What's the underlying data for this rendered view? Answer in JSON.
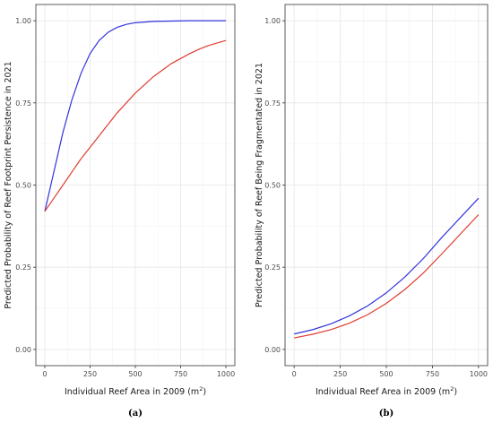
{
  "chart_data": [
    {
      "type": "line",
      "panel_label": "(a)",
      "xlabel": "Individual Reef Area in 2009 (m",
      "xlabel_sup": "2",
      "xlabel_end": ")",
      "ylabel": "Predicted Probability of Reef Footprint Persistence in 2021",
      "xlim": [
        0,
        1000
      ],
      "ylim": [
        0,
        1
      ],
      "xticks": [
        0,
        250,
        500,
        750,
        1000
      ],
      "yticks": [
        0.0,
        0.25,
        0.5,
        0.75,
        1.0
      ],
      "xtick_labels": [
        "0",
        "250",
        "500",
        "750",
        "1000"
      ],
      "ytick_labels": [
        "0.00",
        "0.25",
        "0.50",
        "0.75",
        "1.00"
      ],
      "grid": true,
      "series": [
        {
          "color": "#3333dd",
          "x": [
            0,
            50,
            100,
            150,
            200,
            250,
            300,
            350,
            400,
            450,
            500,
            600,
            700,
            800,
            900,
            1000
          ],
          "y": [
            0.42,
            0.54,
            0.66,
            0.76,
            0.84,
            0.9,
            0.94,
            0.965,
            0.98,
            0.989,
            0.994,
            0.998,
            0.999,
            1.0,
            1.0,
            1.0
          ]
        },
        {
          "color": "#e03c31",
          "x": [
            0,
            50,
            100,
            150,
            200,
            250,
            300,
            350,
            400,
            450,
            500,
            550,
            600,
            650,
            700,
            750,
            800,
            850,
            900,
            950,
            1000
          ],
          "y": [
            0.42,
            0.46,
            0.5,
            0.54,
            0.58,
            0.615,
            0.65,
            0.685,
            0.72,
            0.75,
            0.78,
            0.805,
            0.83,
            0.85,
            0.87,
            0.885,
            0.9,
            0.913,
            0.924,
            0.932,
            0.94
          ]
        }
      ]
    },
    {
      "type": "line",
      "panel_label": "(b)",
      "xlabel": "Individual Reef Area in 2009 (m",
      "xlabel_sup": "2",
      "xlabel_end": ")",
      "ylabel": "Predicted Probability of Reef Being Fragmentated in 2021",
      "xlim": [
        0,
        1000
      ],
      "ylim": [
        0,
        1
      ],
      "xticks": [
        0,
        250,
        500,
        750,
        1000
      ],
      "yticks": [
        0.0,
        0.25,
        0.5,
        0.75,
        1.0
      ],
      "xtick_labels": [
        "0",
        "250",
        "500",
        "750",
        "1000"
      ],
      "ytick_labels": [
        "0.00",
        "0.25",
        "0.50",
        "0.75",
        "1.00"
      ],
      "grid": true,
      "series": [
        {
          "color": "#3333dd",
          "x": [
            0,
            100,
            200,
            300,
            400,
            500,
            600,
            700,
            800,
            900,
            1000
          ],
          "y": [
            0.047,
            0.06,
            0.078,
            0.102,
            0.133,
            0.172,
            0.22,
            0.276,
            0.34,
            0.4,
            0.46
          ]
        },
        {
          "color": "#e03c31",
          "x": [
            0,
            100,
            200,
            300,
            400,
            500,
            600,
            700,
            800,
            900,
            1000
          ],
          "y": [
            0.035,
            0.046,
            0.06,
            0.08,
            0.106,
            0.14,
            0.182,
            0.232,
            0.29,
            0.35,
            0.41
          ]
        }
      ]
    }
  ]
}
